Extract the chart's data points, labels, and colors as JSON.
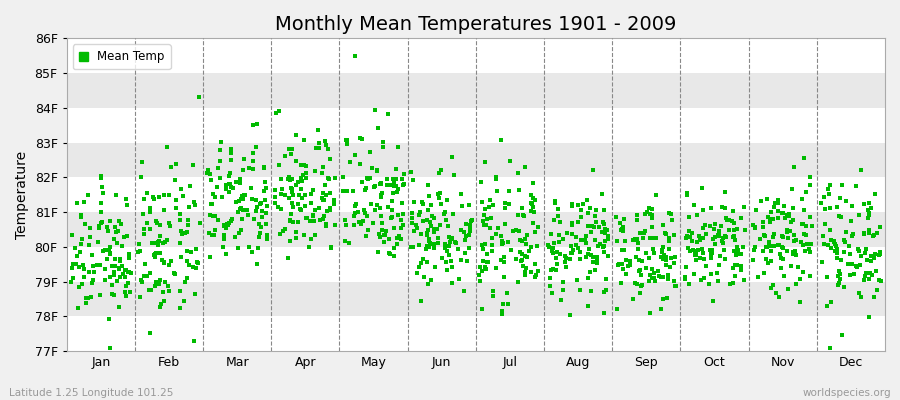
{
  "title": "Monthly Mean Temperatures 1901 - 2009",
  "ylabel": "Temperature",
  "xlabel": "",
  "footer_left": "Latitude 1.25 Longitude 101.25",
  "footer_right": "worldspecies.org",
  "legend_label": "Mean Temp",
  "ylim": [
    77,
    86
  ],
  "ytick_labels": [
    "77F",
    "78F",
    "79F",
    "80F",
    "81F",
    "82F",
    "83F",
    "84F",
    "85F",
    "86F"
  ],
  "ytick_values": [
    77,
    78,
    79,
    80,
    81,
    82,
    83,
    84,
    85,
    86
  ],
  "months": [
    "Jan",
    "Feb",
    "Mar",
    "Apr",
    "May",
    "Jun",
    "Jul",
    "Aug",
    "Sep",
    "Oct",
    "Nov",
    "Dec"
  ],
  "n_years": 109,
  "marker_color": "#00bb00",
  "marker": "s",
  "marker_size": 2.5,
  "background_color": "#f0f0f0",
  "plot_bg_color": "#ffffff",
  "band_color": "#e8e8e8",
  "title_fontsize": 14,
  "axis_label_fontsize": 10,
  "tick_fontsize": 9,
  "month_means": [
    79.7,
    80.0,
    81.2,
    81.5,
    81.5,
    80.5,
    80.2,
    80.0,
    79.8,
    80.0,
    80.3,
    80.1
  ],
  "month_stds": [
    0.9,
    1.1,
    0.9,
    0.9,
    1.0,
    0.85,
    0.85,
    0.75,
    0.7,
    0.75,
    0.9,
    0.95
  ]
}
